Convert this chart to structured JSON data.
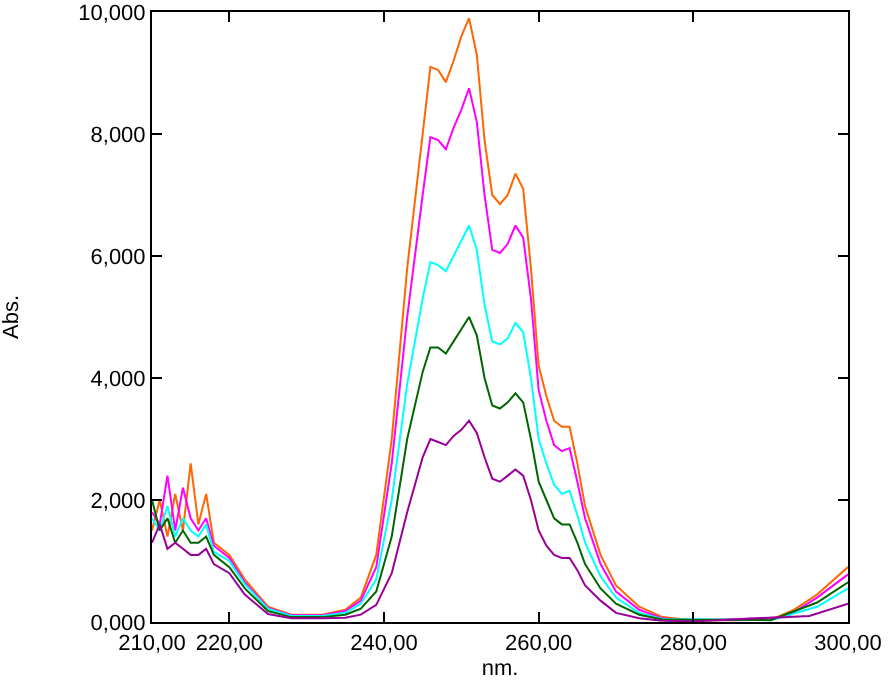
{
  "chart_data": {
    "type": "line",
    "xlabel": "nm.",
    "ylabel": "Abs.",
    "x": [
      210,
      211,
      212,
      213,
      214,
      215,
      216,
      217,
      218,
      220,
      222,
      225,
      228,
      232,
      235,
      237,
      239,
      241,
      243,
      245,
      246,
      247,
      248,
      249,
      250,
      251,
      252,
      253,
      254,
      255,
      256,
      257,
      258,
      259,
      260,
      261,
      262,
      263,
      264,
      265,
      266,
      268,
      270,
      273,
      276,
      280,
      285,
      290,
      293,
      296,
      300
    ],
    "series": [
      {
        "color": "#ff6600",
        "values": [
          1.5,
          2.0,
          1.4,
          2.1,
          1.5,
          2.6,
          1.6,
          2.1,
          1.3,
          1.1,
          0.7,
          0.25,
          0.12,
          0.12,
          0.2,
          0.4,
          1.1,
          3.0,
          5.8,
          8.0,
          9.1,
          9.05,
          8.85,
          9.2,
          9.6,
          9.9,
          9.3,
          7.9,
          7.0,
          6.85,
          7.0,
          7.35,
          7.1,
          5.8,
          4.2,
          3.7,
          3.3,
          3.2,
          3.2,
          2.6,
          1.9,
          1.1,
          0.6,
          0.25,
          0.08,
          0.03,
          0.03,
          0.04,
          0.2,
          0.45,
          0.9
        ]
      },
      {
        "color": "#ff00ff",
        "x": [
          210,
          211,
          212,
          213,
          214,
          215,
          216,
          217,
          218,
          220,
          222,
          225,
          228,
          232,
          235,
          237,
          239,
          241,
          243,
          245,
          246,
          247,
          248,
          249,
          250,
          251,
          252,
          253,
          254,
          255,
          256,
          257,
          258,
          259,
          260,
          261,
          262,
          263,
          264,
          265,
          266,
          268,
          270,
          273,
          276,
          280,
          292,
          296,
          300
        ],
        "values": [
          1.8,
          1.6,
          2.4,
          1.5,
          2.2,
          1.7,
          1.5,
          1.7,
          1.25,
          1.05,
          0.65,
          0.23,
          0.11,
          0.11,
          0.18,
          0.35,
          0.9,
          2.6,
          5.0,
          7.0,
          7.95,
          7.9,
          7.75,
          8.1,
          8.4,
          8.75,
          8.2,
          7.0,
          6.1,
          6.05,
          6.2,
          6.5,
          6.3,
          5.3,
          3.8,
          3.3,
          2.9,
          2.8,
          2.85,
          2.3,
          1.7,
          0.95,
          0.5,
          0.2,
          0.06,
          0.02,
          0.08,
          0.4,
          0.78
        ]
      },
      {
        "color": "#00ffff",
        "x": [
          210,
          211,
          212,
          213,
          214,
          215,
          216,
          217,
          218,
          220,
          222,
          225,
          228,
          232,
          235,
          237,
          239,
          241,
          243,
          245,
          246,
          247,
          248,
          249,
          250,
          251,
          252,
          253,
          254,
          255,
          256,
          257,
          258,
          259,
          260,
          261,
          262,
          263,
          264,
          265,
          266,
          268,
          270,
          273,
          276,
          290,
          296,
          300
        ],
        "values": [
          1.7,
          1.5,
          1.9,
          1.4,
          1.7,
          1.5,
          1.4,
          1.6,
          1.15,
          1.0,
          0.62,
          0.22,
          0.1,
          0.1,
          0.15,
          0.3,
          0.7,
          2.0,
          3.9,
          5.3,
          5.9,
          5.85,
          5.75,
          6.0,
          6.25,
          6.5,
          6.1,
          5.2,
          4.6,
          4.55,
          4.65,
          4.9,
          4.75,
          4.0,
          3.0,
          2.6,
          2.25,
          2.1,
          2.15,
          1.75,
          1.3,
          0.75,
          0.4,
          0.15,
          0.05,
          0.03,
          0.25,
          0.55
        ]
      },
      {
        "color": "#006600",
        "x": [
          210,
          211,
          212,
          213,
          214,
          215,
          216,
          217,
          218,
          220,
          222,
          225,
          228,
          232,
          235,
          237,
          239,
          241,
          243,
          245,
          246,
          247,
          248,
          249,
          250,
          251,
          252,
          253,
          254,
          255,
          256,
          257,
          258,
          259,
          260,
          261,
          262,
          263,
          264,
          265,
          266,
          268,
          270,
          273,
          276,
          290,
          296,
          300
        ],
        "values": [
          2.0,
          1.5,
          1.7,
          1.3,
          1.5,
          1.3,
          1.3,
          1.4,
          1.1,
          0.9,
          0.55,
          0.18,
          0.08,
          0.08,
          0.12,
          0.22,
          0.5,
          1.4,
          3.0,
          4.1,
          4.5,
          4.5,
          4.4,
          4.6,
          4.8,
          5.0,
          4.7,
          4.0,
          3.55,
          3.5,
          3.6,
          3.75,
          3.6,
          3.0,
          2.3,
          2.0,
          1.7,
          1.6,
          1.6,
          1.3,
          0.95,
          0.55,
          0.3,
          0.12,
          0.04,
          0.03,
          0.32,
          0.65
        ]
      },
      {
        "color": "#990099",
        "x": [
          210,
          211,
          212,
          213,
          214,
          215,
          216,
          217,
          218,
          220,
          222,
          225,
          228,
          232,
          235,
          237,
          239,
          241,
          243,
          245,
          246,
          247,
          248,
          249,
          250,
          251,
          252,
          253,
          254,
          255,
          256,
          257,
          258,
          259,
          260,
          261,
          262,
          263,
          264,
          265,
          266,
          268,
          270,
          273,
          276,
          280,
          295,
          300
        ],
        "values": [
          1.3,
          1.6,
          1.2,
          1.3,
          1.2,
          1.1,
          1.1,
          1.2,
          0.95,
          0.8,
          0.45,
          0.13,
          0.06,
          0.06,
          0.07,
          0.12,
          0.28,
          0.8,
          1.8,
          2.7,
          3.0,
          2.95,
          2.9,
          3.05,
          3.15,
          3.3,
          3.1,
          2.7,
          2.35,
          2.3,
          2.4,
          2.5,
          2.4,
          2.0,
          1.5,
          1.25,
          1.1,
          1.05,
          1.05,
          0.85,
          0.6,
          0.35,
          0.15,
          0.06,
          0.02,
          0.01,
          0.1,
          0.3
        ]
      }
    ],
    "xlim": [
      210,
      300
    ],
    "xticks": [
      {
        "value": 210,
        "label": "210,00"
      },
      {
        "value": 220,
        "label": "220,00"
      },
      {
        "value": 240,
        "label": "240,00"
      },
      {
        "value": 260,
        "label": "260,00"
      },
      {
        "value": 280,
        "label": "280,00"
      },
      {
        "value": 300,
        "label": "300,00"
      }
    ],
    "ylim": [
      0,
      10
    ],
    "yticks": [
      {
        "value": 0,
        "label": "0,000"
      },
      {
        "value": 2,
        "label": "2,000"
      },
      {
        "value": 4,
        "label": "4,000"
      },
      {
        "value": 6,
        "label": "6,000"
      },
      {
        "value": 8,
        "label": "8,000"
      },
      {
        "value": 10,
        "label": "10,000"
      }
    ],
    "grid": false,
    "marker": "none",
    "line_style": "solid"
  }
}
